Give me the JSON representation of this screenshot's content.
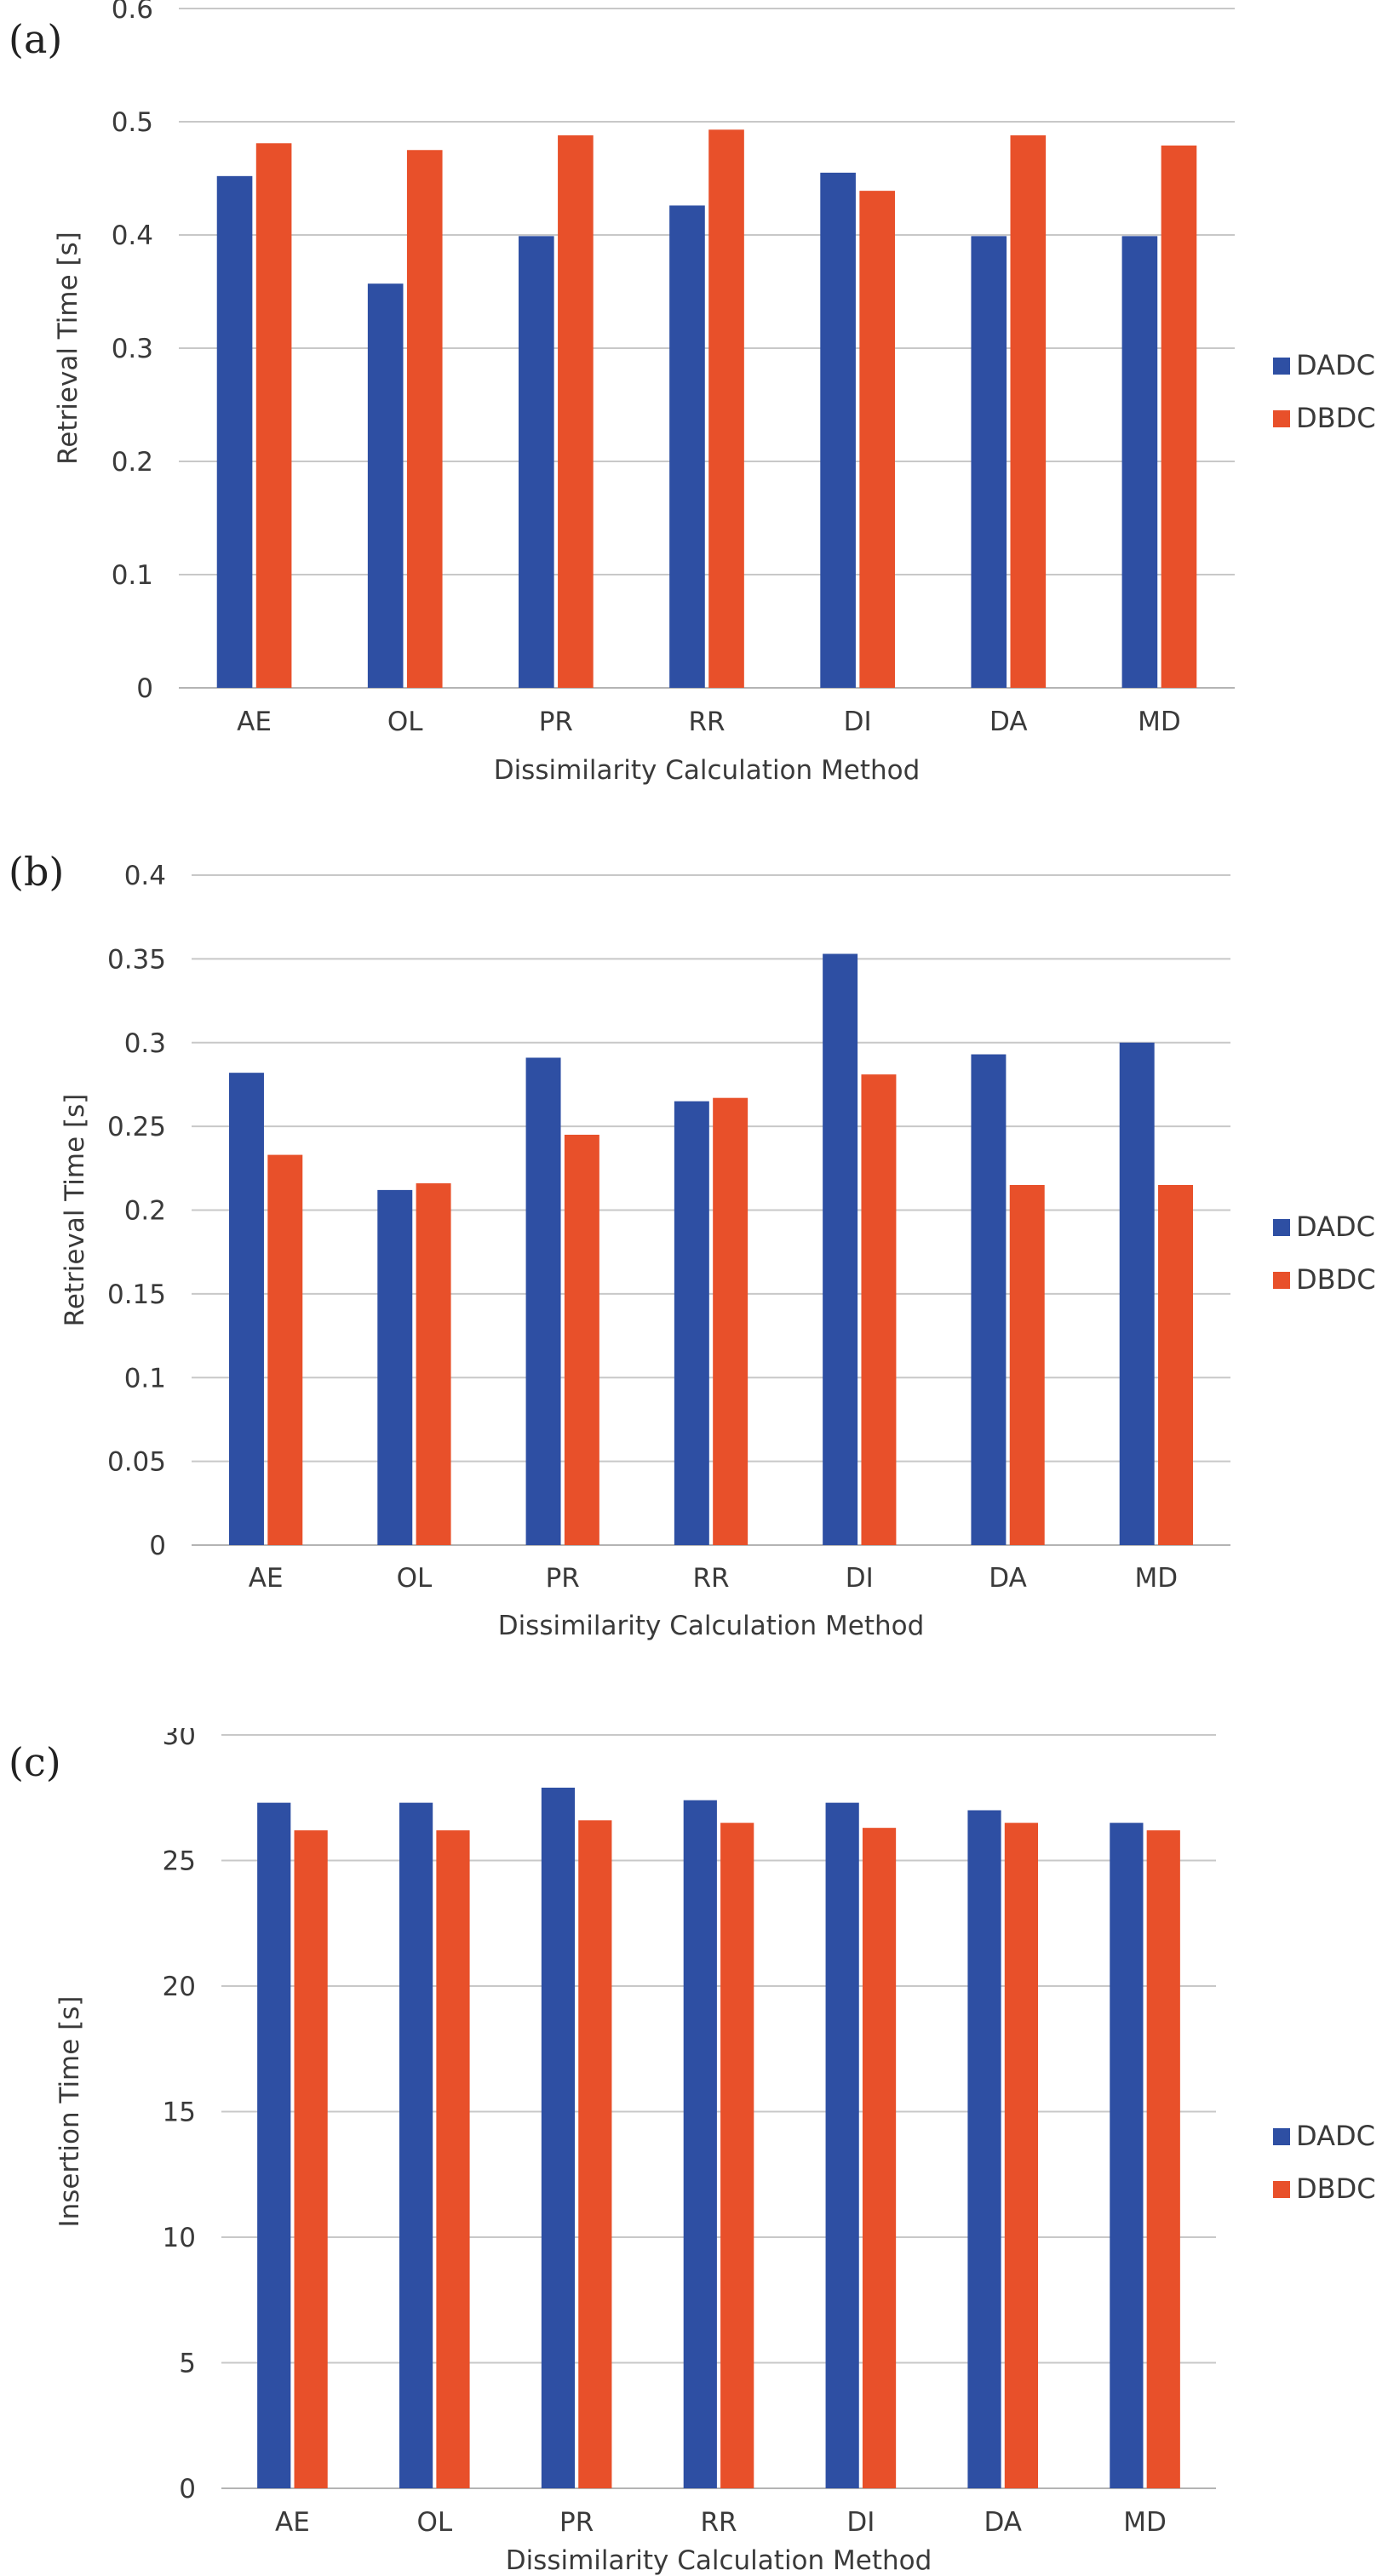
{
  "chart_data": [
    {
      "panel": "(a)",
      "type": "bar",
      "categories": [
        "AE",
        "OL",
        "PR",
        "RR",
        "DI",
        "DA",
        "MD"
      ],
      "series": [
        {
          "name": "DADC",
          "values": [
            0.452,
            0.357,
            0.399,
            0.426,
            0.455,
            0.399,
            0.399
          ]
        },
        {
          "name": "DBDC",
          "values": [
            0.481,
            0.475,
            0.488,
            0.493,
            0.439,
            0.488,
            0.479
          ]
        }
      ],
      "xlabel": "Dissimilarity Calculation Method",
      "ylabel": "Retrieval Time [s]",
      "ylim": [
        0,
        0.6
      ],
      "yticks": [
        "0",
        "0.1",
        "0.2",
        "0.3",
        "0.4",
        "0.5",
        "0.6"
      ],
      "grid": true,
      "legend": "right"
    },
    {
      "panel": "(b)",
      "type": "bar",
      "categories": [
        "AE",
        "OL",
        "PR",
        "RR",
        "DI",
        "DA",
        "MD"
      ],
      "series": [
        {
          "name": "DADC",
          "values": [
            0.282,
            0.212,
            0.291,
            0.265,
            0.353,
            0.293,
            0.3
          ]
        },
        {
          "name": "DBDC",
          "values": [
            0.233,
            0.216,
            0.245,
            0.267,
            0.281,
            0.215,
            0.215
          ]
        }
      ],
      "xlabel": "Dissimilarity Calculation Method",
      "ylabel": "Retrieval Time [s]",
      "ylim": [
        0,
        0.4
      ],
      "yticks": [
        "0",
        "0.05",
        "0.1",
        "0.15",
        "0.2",
        "0.25",
        "0.3",
        "0.35",
        "0.4"
      ],
      "grid": true,
      "legend": "right"
    },
    {
      "panel": "(c)",
      "type": "bar",
      "categories": [
        "AE",
        "OL",
        "PR",
        "RR",
        "DI",
        "DA",
        "MD"
      ],
      "series": [
        {
          "name": "DADC",
          "values": [
            27.3,
            27.3,
            27.9,
            27.4,
            27.3,
            27.0,
            26.5
          ]
        },
        {
          "name": "DBDC",
          "values": [
            26.2,
            26.2,
            26.6,
            26.5,
            26.3,
            26.5,
            26.2
          ]
        }
      ],
      "xlabel": "Dissimilarity Calculation Method",
      "ylabel": "Insertion Time [s]",
      "ylim": [
        0,
        30
      ],
      "yticks": [
        "0",
        "5",
        "10",
        "15",
        "20",
        "25",
        "30"
      ],
      "grid": true,
      "legend": "right"
    }
  ],
  "colors": {
    "DADC": "#2e4fa3",
    "DBDC": "#e8502a"
  }
}
